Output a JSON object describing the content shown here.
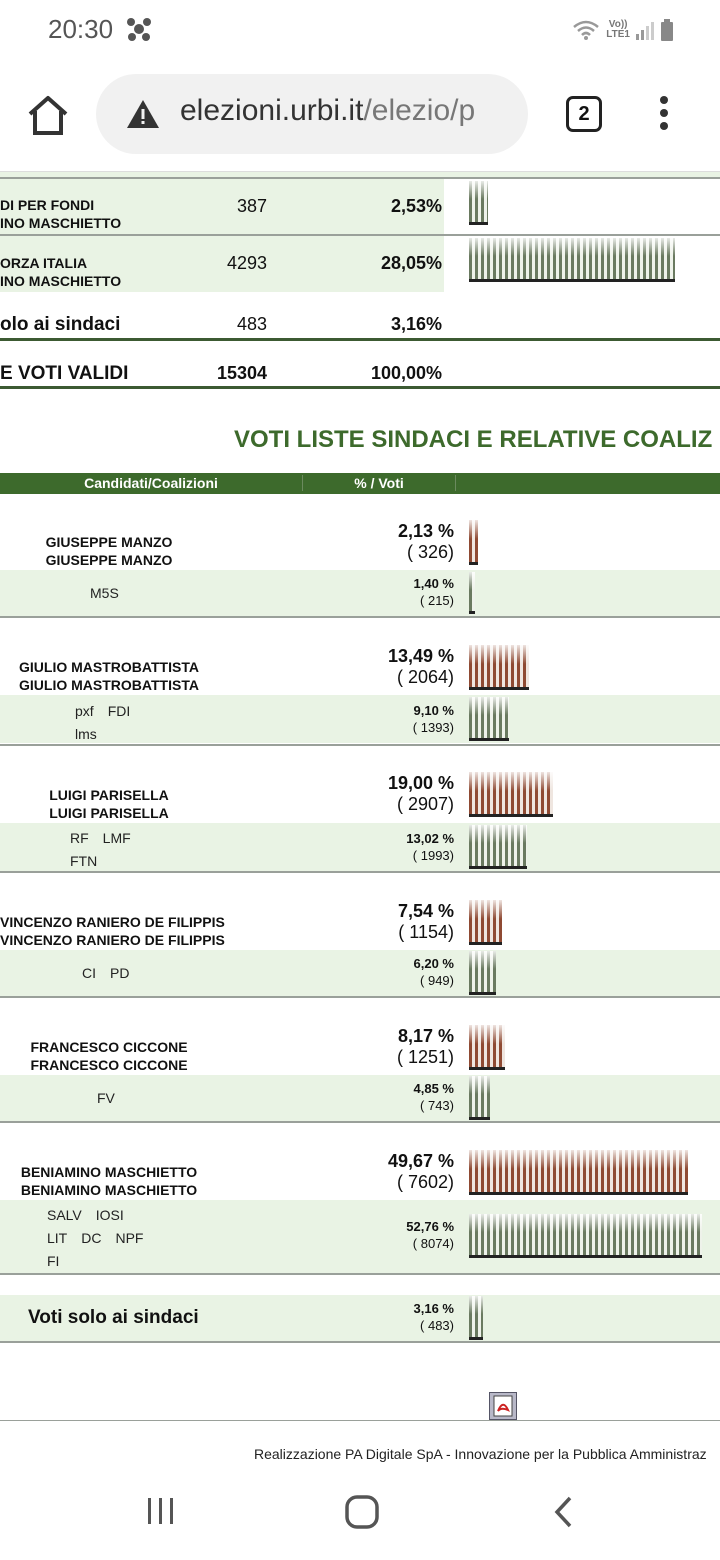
{
  "status_bar": {
    "time": "20:30",
    "network": "LTE1",
    "volte": "Vo))"
  },
  "browser": {
    "url_domain": "elezioni.urbi.it",
    "url_path": "/elezio/p",
    "tab_count": "2"
  },
  "list_results": {
    "rows": [
      {
        "name_line1": "DI PER FONDI",
        "name_line2": "INO MASCHIETTO",
        "votes": "387",
        "percent": "2,53%",
        "bar_fraction": 0.09
      },
      {
        "name_line1": "ORZA ITALIA",
        "name_line2": "INO MASCHIETTO",
        "votes": "4293",
        "percent": "28,05%",
        "bar_fraction": 1.0
      }
    ],
    "solo_sindaci": {
      "label": "olo ai sindaci",
      "votes": "483",
      "percent": "3,16%"
    },
    "totale": {
      "label": "E VOTI VALIDI",
      "votes": "15304",
      "percent": "100,00%"
    }
  },
  "section_title": "VOTI LISTE SINDACI E RELATIVE COALIZ",
  "table_headers": {
    "candidates": "Candidati/Coalizioni",
    "percent_votes": "% / Voti"
  },
  "candidates": [
    {
      "name": "GIUSEPPE MANZO",
      "name_repeat": "GIUSEPPE MANZO",
      "percent": "2,13 %",
      "votes": "( 326)",
      "bar_fraction": 0.043,
      "lists": [
        [
          "M5S"
        ]
      ],
      "lists_percent": "1,40 %",
      "lists_votes": "( 215)",
      "lists_bar_fraction": 0.027
    },
    {
      "name": "GIULIO MASTROBATTISTA",
      "name_repeat": "GIULIO MASTROBATTISTA",
      "percent": "13,49 %",
      "votes": "( 2064)",
      "bar_fraction": 0.272,
      "lists": [
        [
          "pxf",
          "FDI"
        ],
        [
          "lms"
        ]
      ],
      "lists_percent": "9,10 %",
      "lists_votes": "( 1393)",
      "lists_bar_fraction": 0.172
    },
    {
      "name": "LUIGI PARISELLA",
      "name_repeat": "LUIGI PARISELLA",
      "percent": "19,00 %",
      "votes": "( 2907)",
      "bar_fraction": 0.382,
      "lists": [
        [
          "RF",
          "LMF"
        ],
        [
          "FTN"
        ]
      ],
      "lists_percent": "13,02 %",
      "lists_votes": "( 1993)",
      "lists_bar_fraction": 0.247
    },
    {
      "name": "VINCENZO RANIERO DE FILIPPIS",
      "name_repeat": "VINCENZO RANIERO DE FILIPPIS",
      "percent": "7,54 %",
      "votes": "( 1154)",
      "bar_fraction": 0.152,
      "lists": [
        [
          "CI",
          "PD"
        ]
      ],
      "lists_percent": "6,20 %",
      "lists_votes": "( 949)",
      "lists_bar_fraction": 0.118
    },
    {
      "name": "FRANCESCO CICCONE",
      "name_repeat": "FRANCESCO CICCONE",
      "percent": "8,17 %",
      "votes": "( 1251)",
      "bar_fraction": 0.165,
      "lists": [
        [
          "FV"
        ]
      ],
      "lists_percent": "4,85 %",
      "lists_votes": "( 743)",
      "lists_bar_fraction": 0.092
    },
    {
      "name": "BENIAMINO MASCHIETTO",
      "name_repeat": "BENIAMINO MASCHIETTO",
      "percent": "49,67 %",
      "votes": "( 7602)",
      "bar_fraction": 1.0,
      "lists": [
        [
          "SALV",
          "IOSI"
        ],
        [
          "LIT",
          "DC",
          "NPF"
        ],
        [
          "FI"
        ]
      ],
      "lists_percent": "52,76 %",
      "lists_votes": "( 8074)",
      "lists_bar_fraction": 1.0
    }
  ],
  "solo_sindaci_row": {
    "label": "Voti solo ai sindaci",
    "percent": "3,16 %",
    "votes": "( 483)",
    "bar_fraction": 0.06
  },
  "footer": {
    "text": "Realizzazione PA Digitale SpA - Innovazione per la Pubblica Amministraz"
  },
  "colors": {
    "accent_green": "#3d6a2c",
    "light_row": "#e9f3e4",
    "bar_brown": "#8f4a33",
    "bar_green": "#6a7a60"
  },
  "icons": [
    "rubber-duck-icon",
    "wifi-icon",
    "signal-icon",
    "battery-icon",
    "home-icon",
    "warning-icon",
    "more-vert-icon",
    "pdf-icon",
    "recents-icon",
    "home-circle-icon",
    "back-icon"
  ]
}
